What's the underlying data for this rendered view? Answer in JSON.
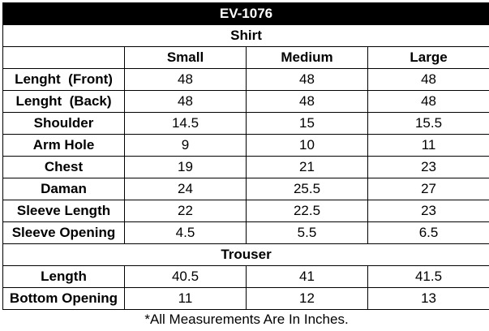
{
  "title": "EV-1076",
  "sections": [
    {
      "label": "Shirt",
      "header": [
        "Small",
        "Medium",
        "Large"
      ],
      "rows": [
        {
          "name": "Lenght  (Front)",
          "values": [
            48,
            48,
            48
          ]
        },
        {
          "name": "Lenght  (Back)",
          "values": [
            48,
            48,
            48
          ]
        },
        {
          "name": "Shoulder",
          "values": [
            14.5,
            15,
            15.5
          ]
        },
        {
          "name": "Arm Hole",
          "values": [
            9,
            10,
            11
          ]
        },
        {
          "name": "Chest",
          "values": [
            19,
            21,
            23
          ]
        },
        {
          "name": "Daman",
          "values": [
            24,
            25.5,
            27
          ]
        },
        {
          "name": "Sleeve Length",
          "values": [
            22,
            22.5,
            23
          ]
        },
        {
          "name": "Sleeve Opening",
          "values": [
            4.5,
            5.5,
            6.5
          ]
        }
      ]
    },
    {
      "label": "Trouser",
      "rows": [
        {
          "name": "Length",
          "values": [
            40.5,
            41,
            41.5
          ]
        },
        {
          "name": "Bottom Opening",
          "values": [
            11,
            12,
            13
          ]
        }
      ]
    }
  ],
  "note": "*All Measurements Are In Inches."
}
